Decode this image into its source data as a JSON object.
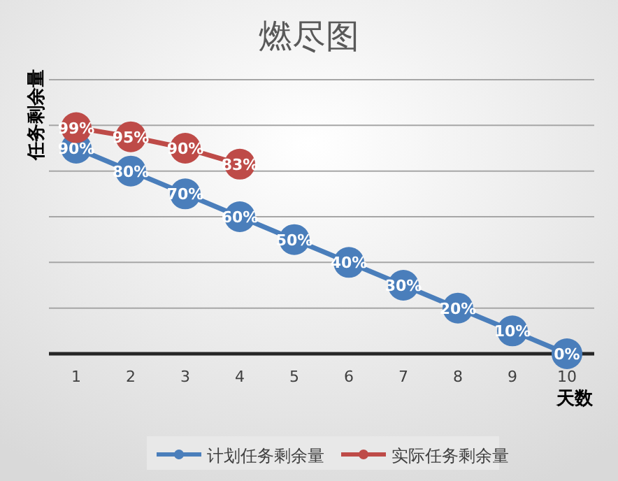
{
  "chart_data": {
    "type": "line",
    "title": "燃尽图",
    "xlabel": "天数",
    "ylabel": "任务剩余量",
    "categories": [
      "1",
      "2",
      "3",
      "4",
      "5",
      "6",
      "7",
      "8",
      "9",
      "10"
    ],
    "series": [
      {
        "name": "计划任务剩余量",
        "color": "#4a7ebb",
        "values": [
          90,
          80,
          70,
          60,
          50,
          40,
          30,
          20,
          10,
          0
        ],
        "value_labels": [
          "90%",
          "80%",
          "70%",
          "60%",
          "50%",
          "40%",
          "30%",
          "20%",
          "10%",
          "0%"
        ]
      },
      {
        "name": "实际任务剩余量",
        "color": "#be4b48",
        "values": [
          99,
          95,
          90,
          83,
          null,
          null,
          null,
          null,
          null,
          null
        ],
        "value_labels": [
          "99%",
          "95%",
          "90%",
          "83%",
          null,
          null,
          null,
          null,
          null,
          null
        ]
      }
    ],
    "ylim": [
      0,
      120
    ],
    "yticks": [
      {
        "value": 0,
        "label": null
      },
      {
        "value": 20,
        "label": null
      },
      {
        "value": 40,
        "label": null
      },
      {
        "value": 60,
        "label": null
      },
      {
        "value": 80,
        "label": null
      },
      {
        "value": 100,
        "label": null
      },
      {
        "value": 120,
        "label": null
      }
    ],
    "tick_labels": "x",
    "grid": "y",
    "legend": "bottom",
    "marker": "circle",
    "line_style": "solid"
  }
}
